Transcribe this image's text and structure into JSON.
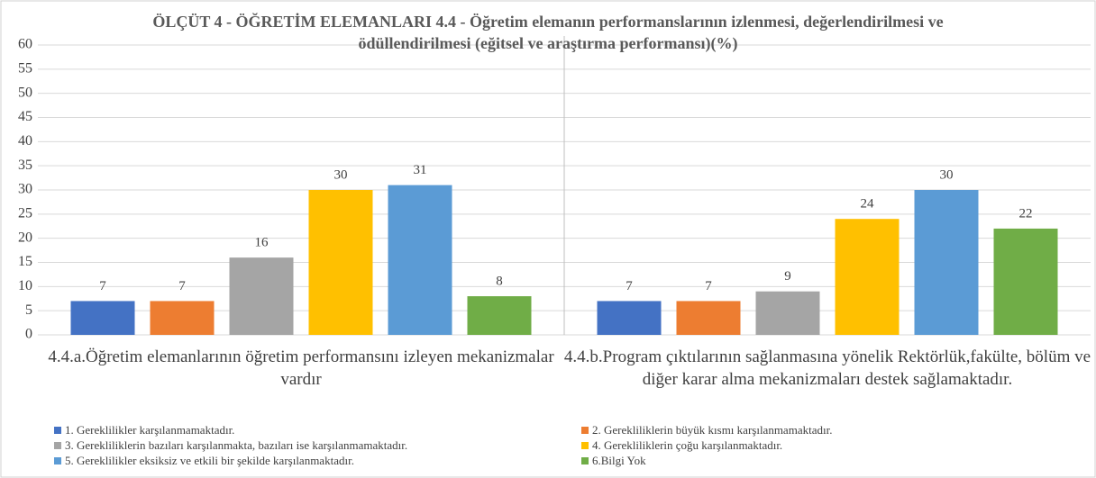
{
  "chart_data": {
    "type": "bar",
    "title": "ÖLÇÜT 4 - ÖĞRETİM ELEMANLARI  4.4 - Öğretim elemanın performanslarının izlenmesi, değerlendirilmesi ve ödüllendirilmesi  (eğitsel ve araştırma  performansı)(%)",
    "categories": [
      "4.4.a.Öğretim elemanlarının öğretim performansını  izleyen mekanizmalar vardır",
      "4.4.b.Program çıktılarının sağlanmasına yönelik Rektörlük,fakülte, bölüm ve diğer karar alma mekanizmaları destek sağlamaktadır."
    ],
    "series": [
      {
        "name": "1. Gereklilikler karşılanmamaktadır.",
        "color": "#4472c4",
        "values": [
          7,
          7
        ]
      },
      {
        "name": "2. Gerekliliklerin büyük kısmı karşılanmamaktadır.",
        "color": "#ed7d31",
        "values": [
          7,
          7
        ]
      },
      {
        "name": "3. Gerekliliklerin bazıları karşılanmakta, bazıları ise karşılanmamaktadır.",
        "color": "#a5a5a5",
        "values": [
          16,
          9
        ]
      },
      {
        "name": "4. Gerekliliklerin çoğu karşılanmaktadır.",
        "color": "#ffc000",
        "values": [
          30,
          24
        ]
      },
      {
        "name": "5. Gereklilikler eksiksiz ve etkili bir şekilde karşılanmaktadır.",
        "color": "#5b9bd5",
        "values": [
          31,
          30
        ]
      },
      {
        "name": "6.Bilgi Yok",
        "color": "#70ad47",
        "values": [
          8,
          22
        ]
      }
    ],
    "ylim": [
      0,
      60
    ],
    "yticks": [
      0,
      5,
      10,
      15,
      20,
      25,
      30,
      35,
      40,
      45,
      50,
      55,
      60
    ],
    "grid": true
  }
}
